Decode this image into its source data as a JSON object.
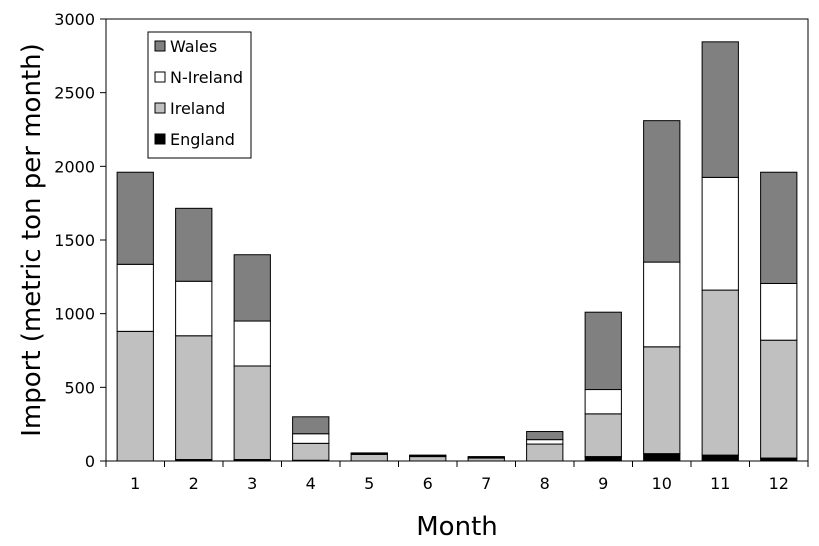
{
  "chart_data": {
    "type": "bar",
    "stacked": true,
    "title": "",
    "xlabel": "Month",
    "ylabel": "Import (metric ton per month)",
    "ylim": [
      0,
      3000
    ],
    "yticks": [
      "0",
      "500",
      "1000",
      "1500",
      "2000",
      "2500",
      "3000"
    ],
    "categories": [
      "1",
      "2",
      "3",
      "4",
      "5",
      "6",
      "7",
      "8",
      "9",
      "10",
      "11",
      "12"
    ],
    "grid": false,
    "legend_position": "top-left",
    "series": [
      {
        "name": "England",
        "color": "#000000",
        "values": [
          0,
          10,
          10,
          5,
          0,
          0,
          0,
          0,
          30,
          50,
          40,
          20
        ]
      },
      {
        "name": "Ireland",
        "color": "#c0c0c0",
        "values": [
          880,
          840,
          635,
          115,
          45,
          30,
          20,
          115,
          290,
          725,
          1120,
          800
        ]
      },
      {
        "name": "N-Ireland",
        "color": "#ffffff",
        "values": [
          455,
          370,
          305,
          65,
          5,
          5,
          5,
          30,
          165,
          575,
          765,
          385
        ]
      },
      {
        "name": "Wales",
        "color": "#808080",
        "values": [
          625,
          495,
          450,
          115,
          5,
          5,
          5,
          55,
          525,
          960,
          920,
          755
        ]
      }
    ],
    "legend_order": [
      "Wales",
      "N-Ireland",
      "Ireland",
      "England"
    ]
  }
}
